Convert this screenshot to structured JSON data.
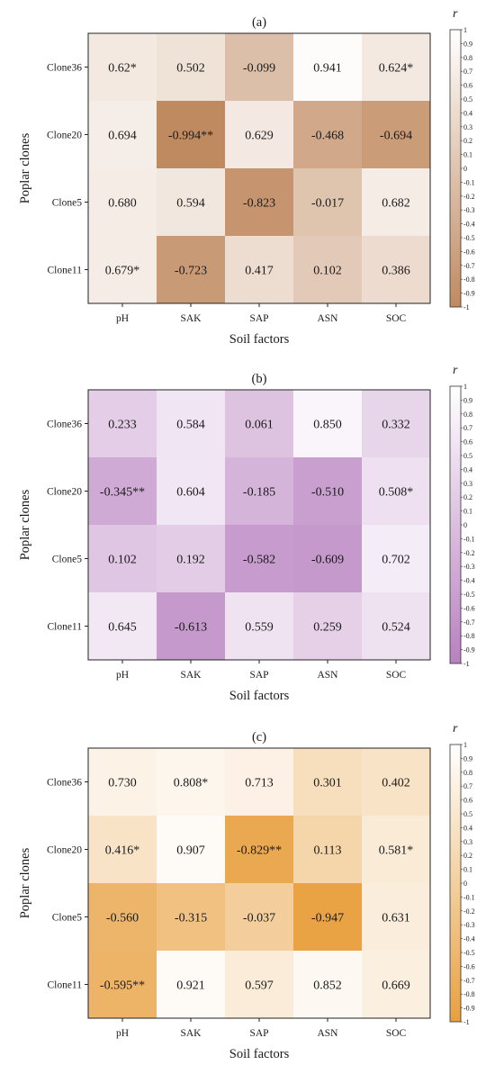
{
  "chart_data": [
    {
      "type": "heatmap",
      "title": "(a)",
      "xlabel": "Soil factors",
      "ylabel": "Poplar clones",
      "x_categories": [
        "pH",
        "SAK",
        "SAP",
        "ASN",
        "SOC"
      ],
      "y_categories": [
        "Clone36",
        "Clone20",
        "Clone5",
        "Clone11"
      ],
      "values": [
        [
          0.62,
          0.502,
          -0.099,
          0.941,
          0.624
        ],
        [
          0.694,
          -0.994,
          0.629,
          -0.468,
          -0.694
        ],
        [
          0.68,
          0.594,
          -0.823,
          -0.017,
          0.682
        ],
        [
          0.679,
          -0.723,
          0.417,
          0.102,
          0.386
        ]
      ],
      "labels": [
        [
          "0.62*",
          "0.502",
          "-0.099",
          "0.941",
          "0.624*"
        ],
        [
          "0.694",
          "-0.994**",
          "0.629",
          "-0.468",
          "-0.694"
        ],
        [
          "0.680",
          "0.594",
          "-0.823",
          "-0.017",
          "0.682"
        ],
        [
          "0.679*",
          "-0.723",
          "0.417",
          "0.102",
          "0.386"
        ]
      ],
      "colorbar": {
        "title": "r",
        "range": [
          -1,
          1
        ],
        "ticks": [
          "1",
          "0.9",
          "0.8",
          "0.7",
          "0.6",
          "0.5",
          "0.4",
          "0.3",
          "0.2",
          "0.1",
          "0",
          "-0.1",
          "-0.2",
          "-0.3",
          "-0.4",
          "-0.5",
          "-0.6",
          "-0.7",
          "-0.8",
          "-0.9",
          "-1"
        ],
        "color_low": "#c08a60",
        "color_high": "#ffffff"
      }
    },
    {
      "type": "heatmap",
      "title": "(b)",
      "xlabel": "Soil factors",
      "ylabel": "Poplar clones",
      "x_categories": [
        "pH",
        "SAK",
        "SAP",
        "ASN",
        "SOC"
      ],
      "y_categories": [
        "Clone36",
        "Clone20",
        "Clone5",
        "Clone11"
      ],
      "values": [
        [
          0.233,
          0.584,
          0.061,
          0.85,
          0.332
        ],
        [
          -0.345,
          0.604,
          -0.185,
          -0.51,
          0.508
        ],
        [
          0.102,
          0.192,
          -0.582,
          -0.609,
          0.702
        ],
        [
          0.645,
          -0.613,
          0.559,
          0.259,
          0.524
        ]
      ],
      "labels": [
        [
          "0.233",
          "0.584",
          "0.061",
          "0.850",
          "0.332"
        ],
        [
          "-0.345**",
          "0.604",
          "-0.185",
          "-0.510",
          "0.508*"
        ],
        [
          "0.102",
          "0.192",
          "-0.582",
          "-0.609",
          "0.702"
        ],
        [
          "0.645",
          "-0.613",
          "0.559",
          "0.259",
          "0.524"
        ]
      ],
      "colorbar": {
        "title": "r",
        "range": [
          -1,
          1
        ],
        "ticks": [
          "1",
          "0.9",
          "0.8",
          "0.7",
          "0.6",
          "0.5",
          "0.4",
          "0.3",
          "0.2",
          "0.1",
          "0",
          "-0.1",
          "-0.2",
          "-0.3",
          "-0.4",
          "-0.5",
          "-0.6",
          "-0.7",
          "-0.8",
          "-0.9",
          "-1"
        ],
        "color_low": "#b880c0",
        "color_high": "#ffffff"
      }
    },
    {
      "type": "heatmap",
      "title": "(c)",
      "xlabel": "Soil factors",
      "ylabel": "Poplar clones",
      "x_categories": [
        "pH",
        "SAK",
        "SAP",
        "ASN",
        "SOC"
      ],
      "y_categories": [
        "Clone36",
        "Clone20",
        "Clone5",
        "Clone11"
      ],
      "values": [
        [
          0.73,
          0.808,
          0.713,
          0.301,
          0.402
        ],
        [
          0.416,
          0.907,
          -0.829,
          0.113,
          0.581
        ],
        [
          -0.56,
          -0.315,
          -0.037,
          -0.947,
          0.631
        ],
        [
          -0.595,
          0.921,
          0.597,
          0.852,
          0.669
        ]
      ],
      "labels": [
        [
          "0.730",
          "0.808*",
          "0.713",
          "0.301",
          "0.402"
        ],
        [
          "0.416*",
          "0.907",
          "-0.829**",
          "0.113",
          "0.581*"
        ],
        [
          "-0.560",
          "-0.315",
          "-0.037",
          "-0.947",
          "0.631"
        ],
        [
          "-0.595**",
          "0.921",
          "0.597",
          "0.852",
          "0.669"
        ]
      ],
      "colorbar": {
        "title": "r",
        "range": [
          -1,
          1
        ],
        "ticks": [
          "1",
          "0.9",
          "0.8",
          "0.7",
          "0.6",
          "0.5",
          "0.4",
          "0.3",
          "0.2",
          "0.1",
          "0",
          "-0.1",
          "-0.2",
          "-0.3",
          "-0.4",
          "-0.5",
          "-0.6",
          "-0.7",
          "-0.8",
          "-0.9",
          "-1"
        ],
        "color_low": "#e8a040",
        "color_high": "#ffffff"
      }
    }
  ]
}
